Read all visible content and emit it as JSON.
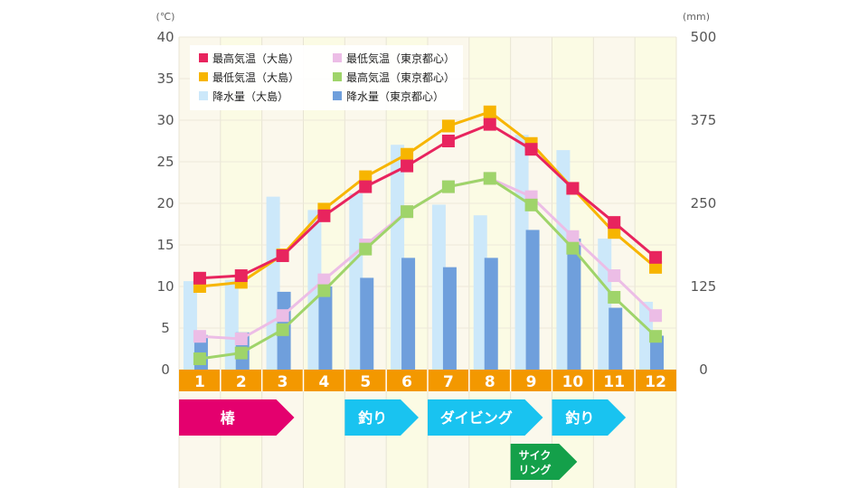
{
  "chart_data": {
    "type": "bar+line",
    "y_left_unit": "(℃)",
    "y_right_unit": "(mm)",
    "y_left_ticks": [
      "0",
      "5",
      "10",
      "15",
      "20",
      "25",
      "30",
      "35",
      "40"
    ],
    "y_right_ticks": [
      "0",
      "125",
      "250",
      "375",
      "500"
    ],
    "ylim_left": [
      0,
      40
    ],
    "ylim_right": [
      0,
      500
    ],
    "categories": [
      "1",
      "2",
      "3",
      "4",
      "5",
      "6",
      "7",
      "8",
      "9",
      "10",
      "11",
      "12"
    ],
    "series": [
      {
        "name": "最高気温（大島）",
        "type": "line",
        "axis": "left",
        "color": "#e8245e",
        "values": [
          11,
          11.3,
          13.7,
          18.5,
          22,
          24.5,
          27.5,
          29.5,
          26.5,
          21.8,
          17.7,
          13.5
        ]
      },
      {
        "name": "最低気温（大島）",
        "type": "line",
        "axis": "left",
        "color": "#f7b500",
        "values": [
          10,
          10.5,
          13.8,
          19.3,
          23.2,
          25.9,
          29.3,
          31,
          27.2,
          21.8,
          16.5,
          12.3
        ]
      },
      {
        "name": "降水量（大島）",
        "type": "bar",
        "axis": "right",
        "color": "#cce8fa",
        "values": [
          133,
          135,
          260,
          240,
          265,
          338,
          248,
          232,
          353,
          330,
          197,
          102
        ]
      },
      {
        "name": "最低気温（東京都心）",
        "type": "line",
        "axis": "left",
        "color": "#ecbde6",
        "values": [
          4,
          3.7,
          6.5,
          10.8,
          15,
          19,
          22,
          23,
          20.8,
          16,
          11.3,
          6.5
        ]
      },
      {
        "name": "最高気温（東京都心）",
        "type": "line",
        "axis": "left",
        "color": "#9fd46a",
        "values": [
          1.3,
          2,
          4.8,
          9.5,
          14.5,
          19,
          22,
          23,
          19.8,
          14.6,
          8.7,
          4
        ]
      },
      {
        "name": "降水量（東京都心）",
        "type": "bar",
        "axis": "right",
        "color": "#6f9fdc",
        "values": [
          52,
          56,
          117,
          125,
          138,
          168,
          154,
          168,
          210,
          197,
          93,
          51
        ]
      }
    ],
    "legend": [
      {
        "label": "最高気温（大島）",
        "color": "#e8245e"
      },
      {
        "label": "最低気温（東京都心）",
        "color": "#ecbde6"
      },
      {
        "label": "最低気温（大島）",
        "color": "#f7b500"
      },
      {
        "label": "最高気温（東京都心）",
        "color": "#9fd46a"
      },
      {
        "label": "降水量（大島）",
        "color": "#cce8fa"
      },
      {
        "label": "降水量（東京都心）",
        "color": "#6f9fdc"
      }
    ],
    "legend_position": "top-left",
    "month_band_color": "#f39800",
    "activities": [
      {
        "label": "椿",
        "color": "#e4006e",
        "start_month": 1,
        "end_month": 3,
        "row": 1
      },
      {
        "label": "釣り",
        "color": "#19c3f0",
        "start_month": 5,
        "end_month": 6,
        "row": 1
      },
      {
        "label": "ダイビング",
        "color": "#19c3f0",
        "start_month": 7,
        "end_month": 9,
        "row": 1
      },
      {
        "label": "釣り",
        "color": "#19c3f0",
        "start_month": 10,
        "end_month": 11,
        "row": 1
      },
      {
        "label": "サイク",
        "label2": "リング",
        "color": "#14a04a",
        "start_month": 9,
        "end_month": 10,
        "row": 2
      }
    ]
  }
}
